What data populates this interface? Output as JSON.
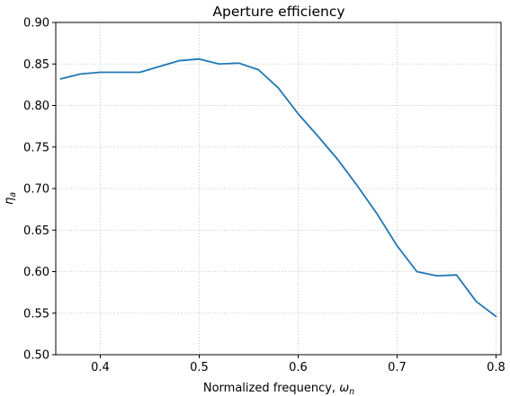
{
  "chart_data": {
    "type": "line",
    "title": "Aperture efficiency",
    "xlabel": "Normalized frequency, ",
    "xlabel_symbol": "ω",
    "xlabel_sub": "n",
    "ylabel_symbol": "η",
    "ylabel_sub": "a",
    "xlim": [
      0.355,
      0.805
    ],
    "ylim": [
      0.5,
      0.9
    ],
    "xticks": [
      0.4,
      0.5,
      0.6,
      0.7,
      0.8
    ],
    "xtick_labels": [
      "0.4",
      "0.5",
      "0.6",
      "0.7",
      "0.8"
    ],
    "yticks": [
      0.5,
      0.55,
      0.6,
      0.65,
      0.7,
      0.75,
      0.8,
      0.85,
      0.9
    ],
    "ytick_labels": [
      "0.50",
      "0.55",
      "0.60",
      "0.65",
      "0.70",
      "0.75",
      "0.80",
      "0.85",
      "0.90"
    ],
    "grid": true,
    "line_color": "#1f77b4",
    "series": [
      {
        "x": [
          0.36,
          0.38,
          0.4,
          0.42,
          0.44,
          0.46,
          0.48,
          0.5,
          0.52,
          0.54,
          0.56,
          0.58,
          0.6,
          0.62,
          0.64,
          0.66,
          0.68,
          0.7,
          0.72,
          0.74,
          0.76,
          0.78,
          0.8
        ],
        "y": [
          0.832,
          0.838,
          0.84,
          0.84,
          0.84,
          0.847,
          0.854,
          0.856,
          0.85,
          0.851,
          0.843,
          0.821,
          0.79,
          0.763,
          0.735,
          0.703,
          0.669,
          0.631,
          0.6,
          0.595,
          0.596,
          0.564,
          0.546
        ]
      }
    ]
  }
}
